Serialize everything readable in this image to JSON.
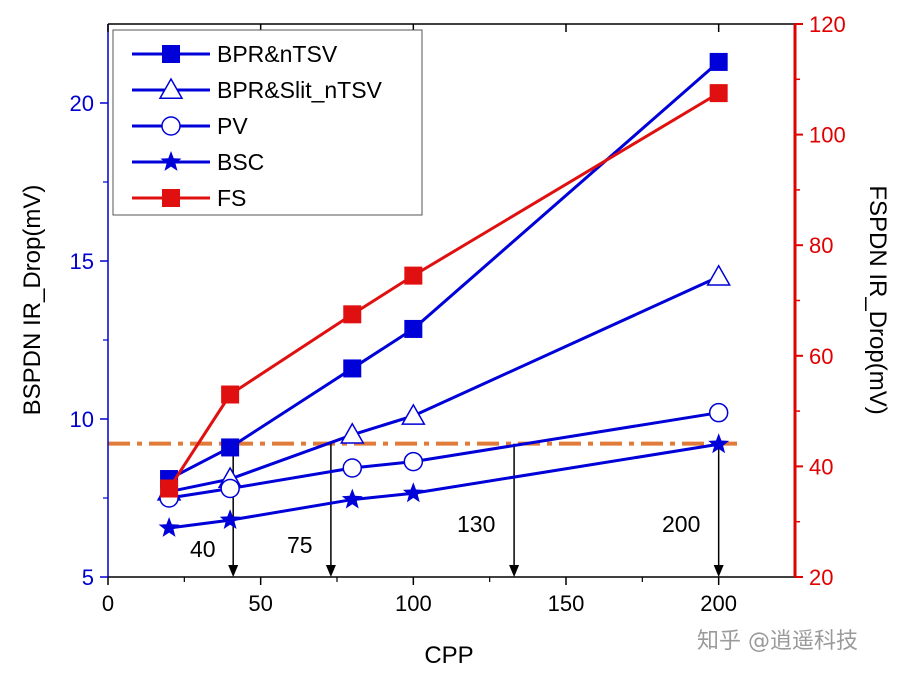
{
  "chart_data": {
    "type": "line",
    "title": "",
    "xlabel": "CPP",
    "ylabel": "BSPDN IR_Drop(mV)",
    "y2label": "FSPDN IR_Drop(mV)",
    "xlim": [
      0,
      225
    ],
    "ylim": [
      5,
      22.5
    ],
    "y2lim": [
      20,
      120
    ],
    "xticks": [
      0,
      50,
      100,
      150,
      200
    ],
    "xtick_labels": [
      "0",
      "50",
      "100",
      "150",
      "200"
    ],
    "yticks": [
      5,
      10,
      15,
      20
    ],
    "ytick_labels": [
      "5",
      "10",
      "15",
      "20"
    ],
    "y2ticks": [
      20,
      40,
      60,
      80,
      100,
      120
    ],
    "y2tick_labels": [
      "20",
      "40",
      "60",
      "80",
      "100",
      "120"
    ],
    "colors": {
      "left_axis": "#0000cc",
      "right_axis": "#e00000",
      "blue_series": "#0000d8",
      "red_series": "#e01010",
      "threshold": "#e07b39"
    },
    "legend_position": "top-left",
    "series": [
      {
        "name": "BPR&nTSV",
        "axis": "left",
        "marker": "filled-square",
        "color": "#0000d8",
        "x": [
          20,
          40,
          80,
          100,
          200
        ],
        "y": [
          8.1,
          9.1,
          11.6,
          12.85,
          21.3
        ]
      },
      {
        "name": "BPR&Slit_nTSV",
        "axis": "left",
        "marker": "open-triangle",
        "color": "#0000d8",
        "x": [
          20,
          40,
          80,
          100,
          200
        ],
        "y": [
          7.7,
          8.1,
          9.5,
          10.1,
          14.5
        ]
      },
      {
        "name": "PV",
        "axis": "left",
        "marker": "open-circle",
        "color": "#0000d8",
        "x": [
          20,
          40,
          80,
          100,
          200
        ],
        "y": [
          7.5,
          7.8,
          8.45,
          8.65,
          10.2
        ]
      },
      {
        "name": "BSC",
        "axis": "left",
        "marker": "star",
        "color": "#0000d8",
        "x": [
          20,
          40,
          80,
          100,
          200
        ],
        "y": [
          6.55,
          6.8,
          7.45,
          7.65,
          9.2
        ]
      },
      {
        "name": "FS",
        "axis": "right",
        "marker": "filled-square",
        "color": "#e01010",
        "x": [
          20,
          40,
          80,
          100,
          200
        ],
        "y": [
          36,
          53,
          67.5,
          74.5,
          107.5
        ]
      }
    ],
    "threshold_line": {
      "axis": "left",
      "y": 9.22,
      "style": "dash-dot"
    },
    "annotations": [
      {
        "label": "40",
        "x": 41
      },
      {
        "label": "75",
        "x": 73
      },
      {
        "label": "130",
        "x": 133
      },
      {
        "label": "200",
        "x": 200
      }
    ]
  },
  "watermark": "知乎 @逍遥科技"
}
